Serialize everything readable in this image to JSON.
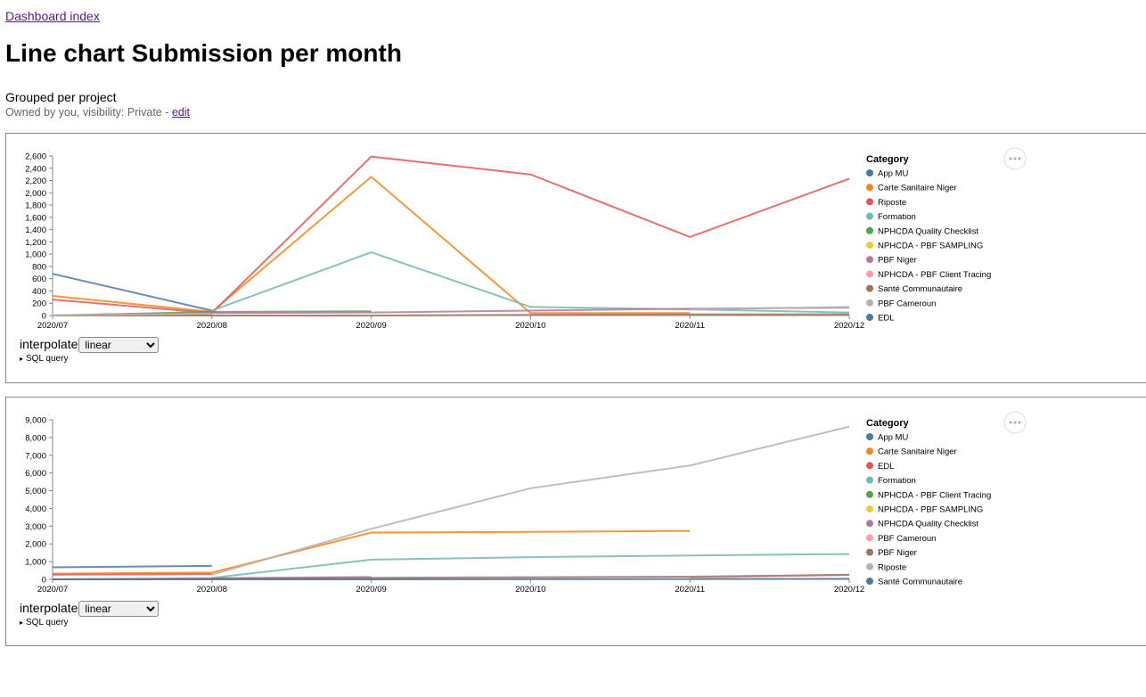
{
  "nav": {
    "back_label": "Dashboard index"
  },
  "page": {
    "title": "Line chart Submission per month",
    "description": "Grouped per project",
    "ownership_prefix": "Owned by you, visibility: Private - ",
    "edit_label": "edit"
  },
  "panels": [
    {
      "interpolate_label": "interpolate",
      "interpolate_value": "linear",
      "sql_label": "SQL query",
      "menu_label": "•••",
      "legend_title": "Category"
    },
    {
      "interpolate_label": "interpolate",
      "interpolate_value": "linear",
      "sql_label": "SQL query",
      "menu_label": "•••",
      "legend_title": "Category"
    }
  ],
  "chart_data": [
    {
      "type": "line",
      "x": [
        "2020/07",
        "2020/08",
        "2020/09",
        "2020/10",
        "2020/11",
        "2020/12"
      ],
      "ylim": [
        0,
        2600
      ],
      "yticks": [
        0,
        200,
        400,
        600,
        800,
        1000,
        1200,
        1400,
        1600,
        1800,
        2000,
        2200,
        2400,
        2600
      ],
      "legend_title": "Category",
      "legend": "right",
      "series": [
        {
          "name": "App MU",
          "color": "#4c78a8",
          "values": [
            680,
            80,
            null,
            null,
            null,
            null
          ]
        },
        {
          "name": "Carte Sanitaire Niger",
          "color": "#f58518",
          "values": [
            320,
            60,
            2260,
            40,
            40,
            null
          ]
        },
        {
          "name": "Riposte",
          "color": "#e45756",
          "values": [
            260,
            40,
            2590,
            2300,
            1280,
            2230
          ]
        },
        {
          "name": "Formation",
          "color": "#72b7b2",
          "values": [
            null,
            80,
            1030,
            140,
            100,
            50
          ]
        },
        {
          "name": "NPHCDA Quality Checklist",
          "color": "#54a24b",
          "values": [
            0,
            60,
            70,
            null,
            null,
            null
          ]
        },
        {
          "name": "NPHCDA - PBF SAMPLING",
          "color": "#eeca3b",
          "values": [
            null,
            null,
            null,
            null,
            null,
            null
          ]
        },
        {
          "name": "PBF Niger",
          "color": "#b279a2",
          "values": [
            0,
            40,
            50,
            80,
            110,
            130
          ]
        },
        {
          "name": "NPHCDA - PBF Client Tracing",
          "color": "#ff9da6",
          "values": [
            0,
            20,
            null,
            null,
            null,
            null
          ]
        },
        {
          "name": "Santé Communautaire",
          "color": "#9d755d",
          "values": [
            0,
            0,
            0,
            10,
            20,
            20
          ]
        },
        {
          "name": "PBF Cameroun",
          "color": "#bab0ac",
          "values": [
            0,
            30,
            null,
            null,
            100,
            140
          ]
        },
        {
          "name": "EDL",
          "color": "#4c78a8",
          "values": [
            null,
            null,
            null,
            null,
            null,
            null
          ]
        }
      ]
    },
    {
      "type": "line",
      "x": [
        "2020/07",
        "2020/08",
        "2020/09",
        "2020/10",
        "2020/11",
        "2020/12"
      ],
      "ylim": [
        0,
        9000
      ],
      "yticks": [
        0,
        1000,
        2000,
        3000,
        4000,
        5000,
        6000,
        7000,
        8000,
        9000
      ],
      "legend_title": "Category",
      "legend": "right",
      "series": [
        {
          "name": "App MU",
          "color": "#4c78a8",
          "values": [
            680,
            760,
            null,
            null,
            null,
            null
          ]
        },
        {
          "name": "Carte Sanitaire Niger",
          "color": "#f58518",
          "values": [
            320,
            380,
            2640,
            2680,
            2730,
            null
          ]
        },
        {
          "name": "EDL",
          "color": "#e45756",
          "values": [
            260,
            300,
            null,
            null,
            null,
            null
          ]
        },
        {
          "name": "Formation",
          "color": "#72b7b2",
          "values": [
            null,
            80,
            1110,
            1250,
            1350,
            1430
          ]
        },
        {
          "name": "NPHCDA - PBF Client Tracing",
          "color": "#54a24b",
          "values": [
            0,
            20,
            null,
            null,
            null,
            null
          ]
        },
        {
          "name": "NPHCDA - PBF SAMPLING",
          "color": "#eeca3b",
          "values": [
            null,
            null,
            null,
            null,
            null,
            null
          ]
        },
        {
          "name": "NPHCDA Quality Checklist",
          "color": "#b279a2",
          "values": [
            0,
            60,
            130,
            null,
            null,
            null
          ]
        },
        {
          "name": "PBF Cameroun",
          "color": "#ff9da6",
          "values": [
            0,
            30,
            null,
            null,
            100,
            240
          ]
        },
        {
          "name": "PBF Niger",
          "color": "#9d755d",
          "values": [
            0,
            40,
            90,
            120,
            150,
            260
          ]
        },
        {
          "name": "Riposte",
          "color": "#bab0ac",
          "values": [
            null,
            260,
            2850,
            5140,
            6420,
            8620
          ]
        },
        {
          "name": "Santé Communautaire",
          "color": "#4c78a8",
          "values": [
            0,
            0,
            0,
            10,
            20,
            30
          ]
        }
      ]
    }
  ]
}
